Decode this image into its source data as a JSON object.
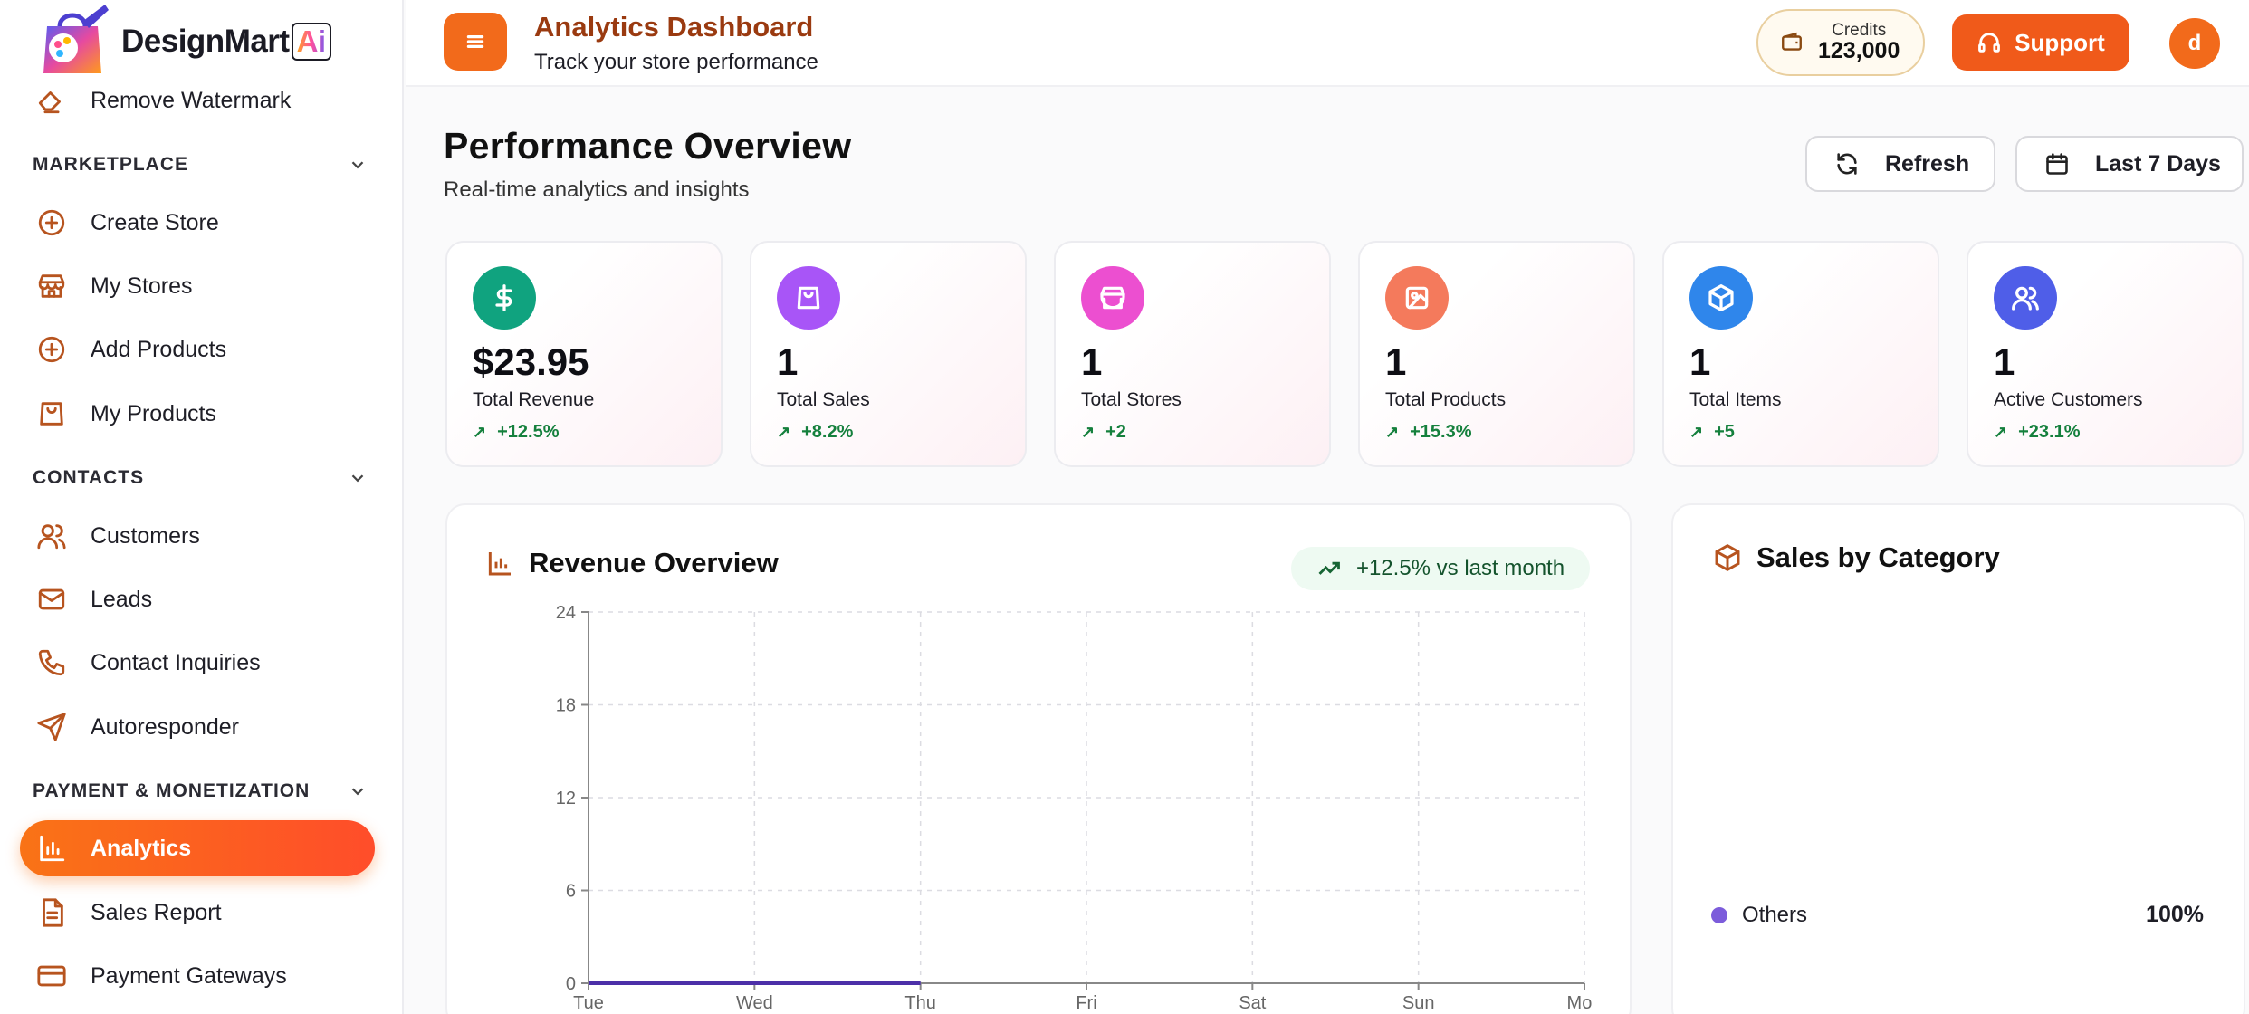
{
  "app": {
    "brand": "DesignMart",
    "brand_badge": "Ai"
  },
  "sidebar": {
    "top_item": {
      "label": "Remove Watermark",
      "icon": "eraser-icon"
    },
    "sections": [
      {
        "title": "MARKETPLACE",
        "items": [
          {
            "label": "Create Store",
            "icon": "plus-circle-icon"
          },
          {
            "label": "My Stores",
            "icon": "store-icon"
          },
          {
            "label": "Add Products",
            "icon": "plus-circle-icon"
          },
          {
            "label": "My Products",
            "icon": "shopping-bag-icon"
          }
        ]
      },
      {
        "title": "CONTACTS",
        "items": [
          {
            "label": "Customers",
            "icon": "users-icon"
          },
          {
            "label": "Leads",
            "icon": "mail-icon"
          },
          {
            "label": "Contact Inquiries",
            "icon": "phone-icon"
          },
          {
            "label": "Autoresponder",
            "icon": "send-icon"
          }
        ]
      },
      {
        "title": "PAYMENT & MONETIZATION",
        "items": [
          {
            "label": "Analytics",
            "icon": "bar-chart-icon",
            "active": true
          },
          {
            "label": "Sales Report",
            "icon": "file-text-icon"
          },
          {
            "label": "Payment Gateways",
            "icon": "credit-card-icon"
          }
        ]
      }
    ]
  },
  "topbar": {
    "title": "Analytics Dashboard",
    "subtitle": "Track your store performance",
    "credits_label": "Credits",
    "credits_value": "123,000",
    "support_label": "Support",
    "avatar_initial": "d"
  },
  "header": {
    "title": "Performance Overview",
    "subtitle": "Real-time analytics and insights",
    "refresh_label": "Refresh",
    "range_label": "Last 7 Days"
  },
  "stats": [
    {
      "value": "$23.95",
      "label": "Total Revenue",
      "change": "+12.5%",
      "color": "#10a37f",
      "icon": "dollar-icon"
    },
    {
      "value": "1",
      "label": "Total Sales",
      "change": "+8.2%",
      "color": "#a855f7",
      "icon": "shopping-bag-icon"
    },
    {
      "value": "1",
      "label": "Total Stores",
      "change": "+2",
      "color": "#ec4fd0",
      "icon": "store-icon"
    },
    {
      "value": "1",
      "label": "Total Products",
      "change": "+15.3%",
      "color": "#f47a5c",
      "icon": "image-icon"
    },
    {
      "value": "1",
      "label": "Total Items",
      "change": "+5",
      "color": "#2f86eb",
      "icon": "box-icon"
    },
    {
      "value": "1",
      "label": "Active Customers",
      "change": "+23.1%",
      "color": "#4f5ee8",
      "icon": "users-icon"
    }
  ],
  "revenue": {
    "title": "Revenue Overview",
    "trend": "+12.5% vs last month"
  },
  "category": {
    "title": "Sales by Category",
    "legend": [
      {
        "name": "Others",
        "pct": "100%",
        "color": "#7c5cdb"
      }
    ]
  },
  "chart_data": {
    "type": "line",
    "x": [
      "Tue",
      "Wed",
      "Thu",
      "Fri",
      "Sat",
      "Sun",
      "Mon"
    ],
    "series": [
      {
        "values": [
          0,
          0,
          0,
          null,
          null,
          null,
          null
        ],
        "color": "#4c2fa8"
      }
    ],
    "yticks": [
      0,
      6,
      12,
      18,
      24
    ],
    "ylim": [
      0,
      24
    ],
    "grid": true
  }
}
